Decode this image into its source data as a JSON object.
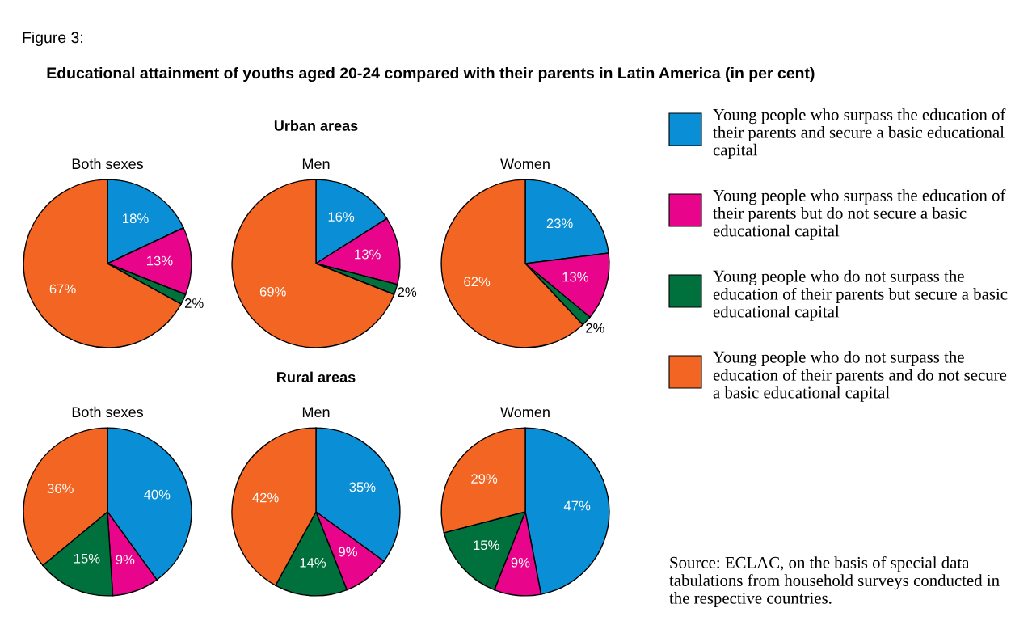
{
  "chart_data": [
    {
      "type": "pie",
      "title": "Both sexes",
      "categories": [
        "Young people who surpass the education of their parents and secure a basic educational capital",
        "Young people who surpass the education of their parents but do not secure a basic educational capital",
        "Young people who do not surpass the education of their parents but secure a basic educational capital",
        "Young people who do not surpass the education of their parents and do not secure a basic educational capital"
      ],
      "values": [
        18,
        13,
        2,
        67
      ],
      "value_labels": [
        "18%",
        "13%",
        "2%",
        "67%"
      ],
      "colors": [
        "#0a8fd6",
        "#e8058c",
        "#00703c",
        "#f26522"
      ],
      "legend": "right",
      "annotations": [
        "Figure 3:",
        "Educational attainment of youths aged 20-24 compared with their parents in Latin America (in per cent)",
        "Urban areas"
      ]
    },
    {
      "type": "pie",
      "title": "Men",
      "values": [
        16,
        13,
        2,
        69
      ],
      "value_labels": [
        "16%",
        "13%",
        "2%",
        "69%"
      ],
      "colors": [
        "#0a8fd6",
        "#e8058c",
        "#00703c",
        "#f26522"
      ]
    },
    {
      "type": "pie",
      "title": "Women",
      "values": [
        23,
        13,
        2,
        62
      ],
      "value_labels": [
        "23%",
        "13%",
        "2%",
        "62%"
      ],
      "colors": [
        "#0a8fd6",
        "#e8058c",
        "#00703c",
        "#f26522"
      ]
    },
    {
      "type": "pie",
      "title": "Both sexes",
      "values": [
        40,
        9,
        15,
        36
      ],
      "value_labels": [
        "40%",
        "9%",
        "15%",
        "36%"
      ],
      "colors": [
        "#0a8fd6",
        "#e8058c",
        "#00703c",
        "#f26522"
      ],
      "annotations": [
        "Rural areas"
      ]
    },
    {
      "type": "pie",
      "title": "Men",
      "values": [
        35,
        9,
        14,
        42
      ],
      "value_labels": [
        "35%",
        "9%",
        "14%",
        "42%"
      ],
      "colors": [
        "#0a8fd6",
        "#e8058c",
        "#00703c",
        "#f26522"
      ]
    },
    {
      "type": "pie",
      "title": "Women",
      "values": [
        47,
        9,
        15,
        29
      ],
      "value_labels": [
        "47%",
        "9%",
        "15%",
        "29%"
      ],
      "colors": [
        "#0a8fd6",
        "#e8058c",
        "#00703c",
        "#f26522"
      ],
      "annotations": [
        "Source: ECLAC, on the basis of special data tabulations from household surveys conducted in the respective countries."
      ]
    }
  ]
}
